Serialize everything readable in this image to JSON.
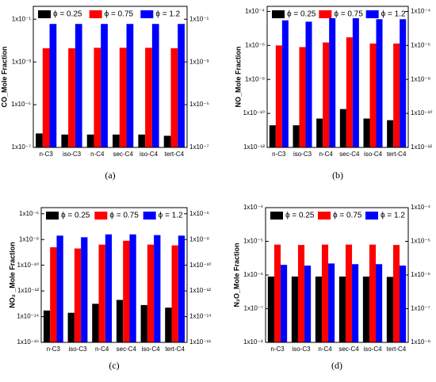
{
  "chart_data": [
    {
      "type": "bar",
      "caption": "(a)",
      "y_label": "CO_Mole Fraction",
      "log_y": true,
      "categories": [
        "n-C3",
        "iso-C3",
        "n-C4",
        "sec-C4",
        "iso-C4",
        "tert-C4"
      ],
      "ylim": [
        1e-07,
        0.4
      ],
      "yticks": [
        {
          "value": 1e-07,
          "label": "1x10⁻⁷"
        },
        {
          "value": 1e-05,
          "label": "1x10⁻⁵"
        },
        {
          "value": 0.001,
          "label": "1x10⁻³"
        },
        {
          "value": 0.1,
          "label": "1x10⁻¹"
        }
      ],
      "series": [
        {
          "name": "ϕ = 0.25",
          "color": "#000000",
          "values": [
            4.5e-07,
            4e-07,
            4e-07,
            4e-07,
            4e-07,
            3.5e-07
          ]
        },
        {
          "name": "ϕ = 0.75",
          "color": "#ff0000",
          "values": [
            0.0044,
            0.0044,
            0.0046,
            0.0046,
            0.0046,
            0.0044
          ]
        },
        {
          "name": "ϕ = 1.2",
          "color": "#0000ff",
          "values": [
            0.06,
            0.06,
            0.06,
            0.06,
            0.06,
            0.06
          ]
        }
      ]
    },
    {
      "type": "bar",
      "caption": "(b)",
      "y_label": "NO_Mole Fraction",
      "log_y": true,
      "categories": [
        "n-C3",
        "iso-C3",
        "n-C4",
        "sec-C4",
        "iso-C4",
        "tert-C4"
      ],
      "ylim": [
        1e-12,
        0.0002
      ],
      "yticks": [
        {
          "value": 1e-12,
          "label": "1x10⁻¹²"
        },
        {
          "value": 1e-10,
          "label": "1x10⁻¹⁰"
        },
        {
          "value": 1e-08,
          "label": "1x10⁻⁸"
        },
        {
          "value": 1e-06,
          "label": "1x10⁻⁶"
        },
        {
          "value": 0.0001,
          "label": "1x10⁻⁴"
        }
      ],
      "series": [
        {
          "name": "ϕ = 0.25",
          "color": "#000000",
          "values": [
            2e-11,
            2e-11,
            5e-11,
            1.8e-10,
            5e-11,
            4e-11
          ]
        },
        {
          "name": "ϕ = 0.75",
          "color": "#ff0000",
          "values": [
            1e-06,
            8e-07,
            1.5e-06,
            3e-06,
            1.3e-06,
            1.3e-06
          ]
        },
        {
          "name": "ϕ = 1.2",
          "color": "#0000ff",
          "values": [
            3e-05,
            2.5e-05,
            4e-05,
            4e-05,
            3.5e-05,
            3.5e-05
          ]
        }
      ]
    },
    {
      "type": "bar",
      "caption": "(c)",
      "y_label": "NO₂ _Mole Fraction",
      "log_y": true,
      "categories": [
        "n-C3",
        "iso-C3",
        "n-C4",
        "sec-C4",
        "iso-C4",
        "tert-C4"
      ],
      "ylim": [
        1e-16,
        3e-06
      ],
      "yticks": [
        {
          "value": 1e-16,
          "label": "1x10⁻¹⁶"
        },
        {
          "value": 1e-14,
          "label": "1x10⁻¹⁴"
        },
        {
          "value": 1e-12,
          "label": "1x10⁻¹²"
        },
        {
          "value": 1e-10,
          "label": "1x10⁻¹⁰"
        },
        {
          "value": 1e-08,
          "label": "1x10⁻⁸"
        },
        {
          "value": 1e-06,
          "label": "1x10⁻⁶"
        }
      ],
      "series": [
        {
          "name": "ϕ = 0.25",
          "color": "#000000",
          "values": [
            3e-14,
            2e-14,
            1e-13,
            2e-13,
            8e-14,
            5e-14
          ]
        },
        {
          "name": "ϕ = 0.75",
          "color": "#ff0000",
          "values": [
            2.5e-09,
            2e-09,
            4e-09,
            8e-09,
            4e-09,
            3.5e-09
          ]
        },
        {
          "name": "ϕ = 1.2",
          "color": "#0000ff",
          "values": [
            2e-08,
            1.5e-08,
            2.5e-08,
            2.5e-08,
            2.2e-08,
            2e-08
          ]
        }
      ]
    },
    {
      "type": "bar",
      "caption": "(d)",
      "y_label": "N₂O_Mole Fraction",
      "log_y": true,
      "categories": [
        "n-C3",
        "iso-C3",
        "n-C4",
        "sec-C4",
        "iso-C4",
        "tert-C4"
      ],
      "ylim": [
        1e-08,
        0.0001
      ],
      "yticks": [
        {
          "value": 1e-08,
          "label": "1x10⁻⁸"
        },
        {
          "value": 1e-07,
          "label": "1x10⁻⁷"
        },
        {
          "value": 1e-06,
          "label": "1x10⁻⁶"
        },
        {
          "value": 1e-05,
          "label": "1x10⁻⁵"
        },
        {
          "value": 0.0001,
          "label": "1x10⁻⁴"
        }
      ],
      "series": [
        {
          "name": "ϕ = 0.25",
          "color": "#000000",
          "values": [
            9e-07,
            9e-07,
            9e-07,
            9e-07,
            9e-07,
            8.8e-07
          ]
        },
        {
          "name": "ϕ = 0.75",
          "color": "#ff0000",
          "values": [
            8e-06,
            7.8e-06,
            8e-06,
            8e-06,
            8e-06,
            7.8e-06
          ]
        },
        {
          "name": "ϕ = 1.2",
          "color": "#0000ff",
          "values": [
            2e-06,
            1.9e-06,
            2.2e-06,
            2.1e-06,
            2.1e-06,
            1.9e-06
          ]
        }
      ]
    }
  ]
}
